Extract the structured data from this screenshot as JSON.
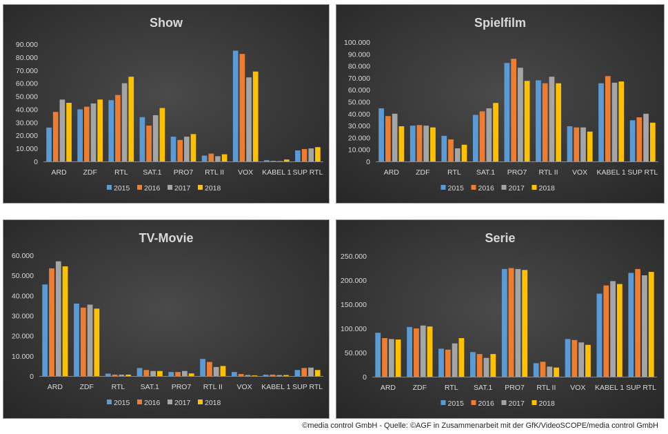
{
  "colors": {
    "2015": "#5b9bd5",
    "2016": "#ed7d31",
    "2017": "#a5a5a5",
    "2018": "#ffc000",
    "panel_bg_center": "#4a4a4a",
    "panel_bg_edge": "#262626",
    "text": "#d9d9d9"
  },
  "chart_data": [
    {
      "type": "bar",
      "title": "Show",
      "categories": [
        "ARD",
        "ZDF",
        "RTL",
        "SAT.1",
        "PRO7",
        "RTL II",
        "VOX",
        "KABEL 1",
        "SUP RTL"
      ],
      "ylim": [
        0,
        90000
      ],
      "yticks": [
        "0",
        "10.000",
        "20.000",
        "30.000",
        "40.000",
        "50.000",
        "60.000",
        "70.000",
        "80.000",
        "90.000"
      ],
      "legend_position": "bottom",
      "series": [
        {
          "name": "2015",
          "values": [
            26000,
            40000,
            47000,
            34000,
            19000,
            4500,
            85000,
            1000,
            8500
          ]
        },
        {
          "name": "2016",
          "values": [
            38000,
            42000,
            51000,
            27500,
            16500,
            6000,
            82500,
            500,
            9500
          ]
        },
        {
          "name": "2017",
          "values": [
            47500,
            44500,
            60000,
            35500,
            19000,
            4000,
            64500,
            300,
            10000
          ]
        },
        {
          "name": "2018",
          "values": [
            45000,
            47500,
            65000,
            41000,
            21000,
            5500,
            69000,
            1500,
            11000
          ]
        }
      ]
    },
    {
      "type": "bar",
      "title": "Spielfilm",
      "categories": [
        "ARD",
        "ZDF",
        "RTL",
        "SAT.1",
        "PRO7",
        "RTL II",
        "VOX",
        "KABEL 1",
        "SUP RTL"
      ],
      "ylim": [
        0,
        100000
      ],
      "yticks": [
        "0",
        "10.000",
        "20.000",
        "30.000",
        "40.000",
        "50.000",
        "60.000",
        "70.000",
        "80.000",
        "90.000",
        "100.000"
      ],
      "legend_position": "bottom",
      "series": [
        {
          "name": "2015",
          "values": [
            44500,
            30000,
            21500,
            39000,
            82500,
            68000,
            29500,
            65500,
            34500
          ]
        },
        {
          "name": "2016",
          "values": [
            38000,
            30500,
            18500,
            42000,
            86000,
            65500,
            28500,
            71500,
            37000
          ]
        },
        {
          "name": "2017",
          "values": [
            40000,
            30000,
            11000,
            44500,
            78500,
            71000,
            28500,
            66000,
            40000
          ]
        },
        {
          "name": "2018",
          "values": [
            29500,
            28500,
            14000,
            49000,
            67500,
            65500,
            25000,
            67000,
            32500
          ]
        }
      ]
    },
    {
      "type": "bar",
      "title": "TV-Movie",
      "categories": [
        "ARD",
        "ZDF",
        "RTL",
        "SAT.1",
        "PRO7",
        "RTL II",
        "VOX",
        "KABEL 1",
        "SUP RTL"
      ],
      "ylim": [
        0,
        60000
      ],
      "yticks": [
        "0",
        "10.000",
        "20.000",
        "30.000",
        "40.000",
        "50.000",
        "60.000"
      ],
      "legend_position": "bottom",
      "series": [
        {
          "name": "2015",
          "values": [
            45500,
            36000,
            1200,
            4000,
            2000,
            8500,
            2000,
            700,
            3000
          ]
        },
        {
          "name": "2016",
          "values": [
            53500,
            34000,
            700,
            3000,
            2000,
            7000,
            1000,
            700,
            4000
          ]
        },
        {
          "name": "2017",
          "values": [
            57000,
            35500,
            700,
            2500,
            2500,
            4500,
            500,
            500,
            4200
          ]
        },
        {
          "name": "2018",
          "values": [
            54500,
            33500,
            700,
            2500,
            1300,
            5000,
            300,
            500,
            3000
          ]
        }
      ]
    },
    {
      "type": "bar",
      "title": "Serie",
      "categories": [
        "ARD",
        "ZDF",
        "RTL",
        "SAT.1",
        "PRO7",
        "RTL II",
        "VOX",
        "KABEL 1",
        "SUP RTL"
      ],
      "ylim": [
        0,
        250000
      ],
      "yticks": [
        "0",
        "50.000",
        "100.000",
        "150.000",
        "200.000",
        "250.000"
      ],
      "legend_position": "bottom",
      "series": [
        {
          "name": "2015",
          "values": [
            91000,
            103000,
            58000,
            51000,
            223000,
            28000,
            78000,
            172000,
            215000
          ]
        },
        {
          "name": "2016",
          "values": [
            80000,
            100000,
            56000,
            47000,
            225000,
            31000,
            76000,
            189000,
            223000
          ]
        },
        {
          "name": "2017",
          "values": [
            78000,
            106000,
            69000,
            39000,
            223000,
            21000,
            71000,
            198000,
            210000
          ]
        },
        {
          "name": "2018",
          "values": [
            77000,
            104000,
            80000,
            47000,
            221000,
            19000,
            66000,
            192000,
            217000
          ]
        }
      ]
    }
  ],
  "footer": "©media control GmbH - Quelle: ©AGF in Zusammenarbeit mit der GfK/VideoSCOPE/media control GmbH"
}
